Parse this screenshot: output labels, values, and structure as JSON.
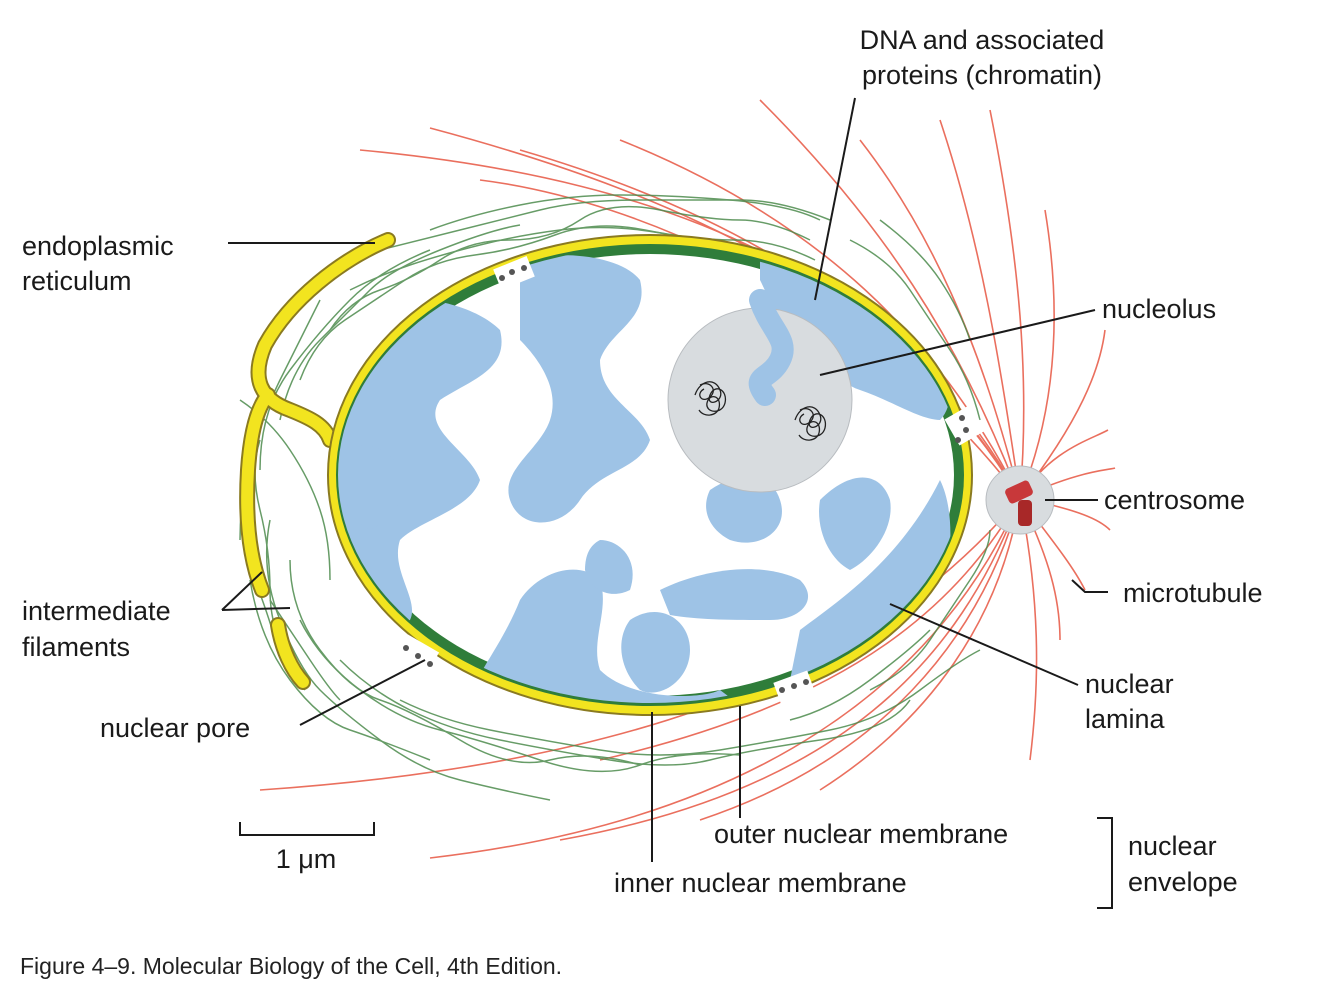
{
  "labels": {
    "chromatin_line1": "DNA and associated",
    "chromatin_line2": "proteins (chromatin)",
    "er_line1": "endoplasmic",
    "er_line2": "reticulum",
    "nucleolus": "nucleolus",
    "centrosome": "centrosome",
    "microtubule": "microtubule",
    "if_line1": "intermediate",
    "if_line2": "filaments",
    "lamina_line1": "nuclear",
    "lamina_line2": "lamina",
    "nuclear_pore": "nuclear pore",
    "outer_membrane": "outer nuclear membrane",
    "inner_membrane": "inner nuclear membrane",
    "envelope_line1": "nuclear",
    "envelope_line2": "envelope",
    "scale_bar": "1 μm"
  },
  "caption": "Figure 4–9. Molecular Biology of the Cell, 4th Edition.",
  "colors": {
    "membrane": "#f2e41f",
    "lamina": "#2f7d3a",
    "chromatin": "#9ec3e6",
    "nucleolus": "#d8dcdf",
    "intermediate_filament": "#4d8b4d",
    "microtubule": "#e8604d",
    "centrosome": "#c8383a"
  }
}
